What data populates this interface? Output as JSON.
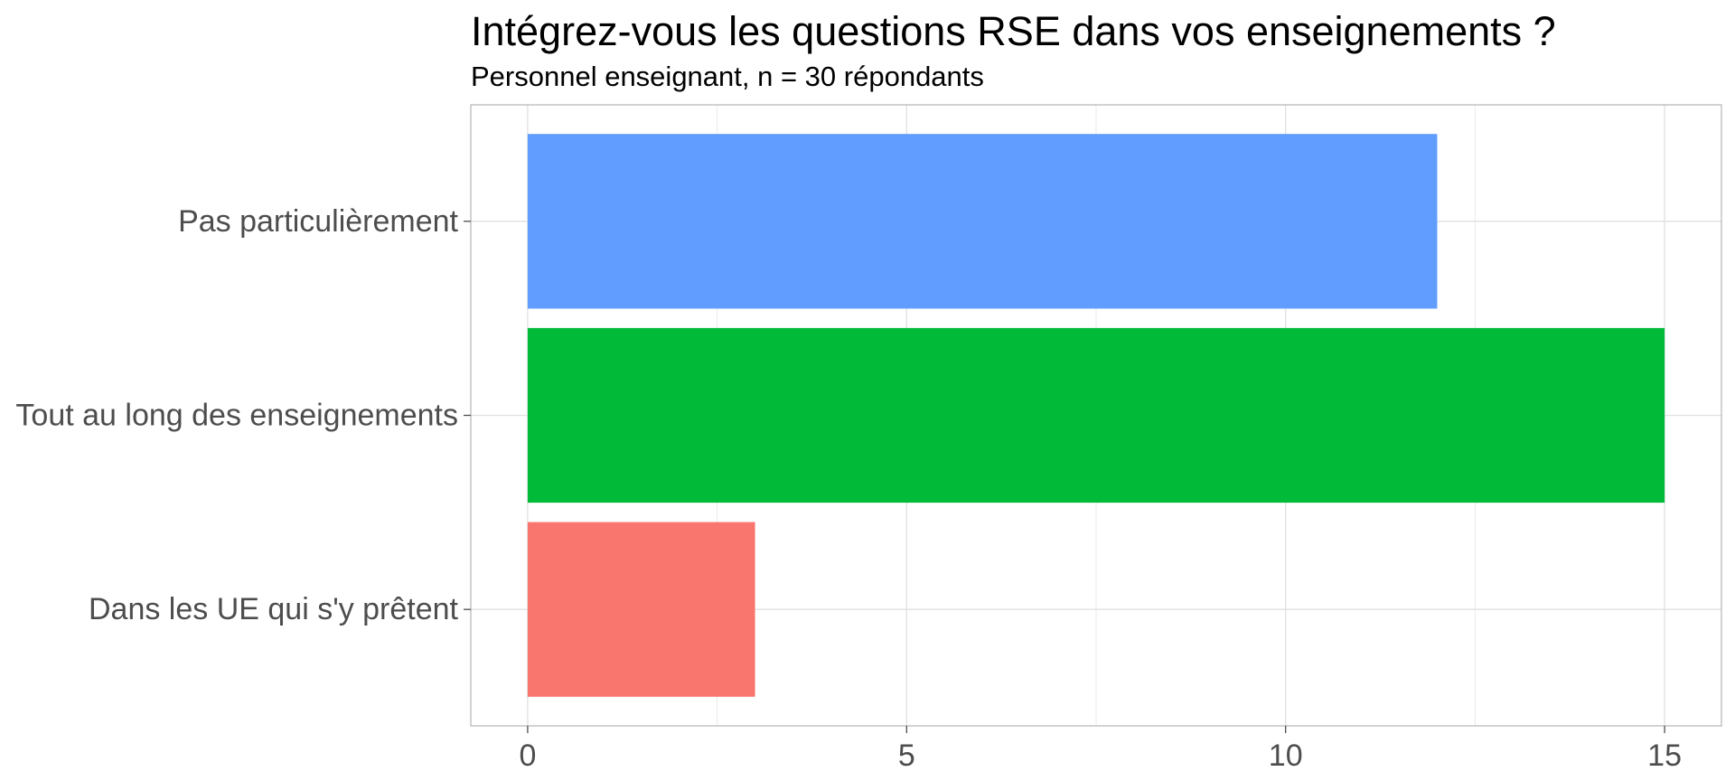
{
  "chart_data": {
    "type": "bar",
    "orientation": "horizontal",
    "title": "Intégrez-vous les questions RSE dans vos enseignements ?",
    "subtitle": "Personnel enseignant, n = 30 répondants",
    "xlabel": "",
    "ylabel": "",
    "categories": [
      "Pas particulièrement",
      "Tout au long des enseignements",
      "Dans les UE qui s'y prêtent"
    ],
    "values": [
      12,
      15,
      3
    ],
    "colors": [
      "#619CFF",
      "#00BA38",
      "#F8766D"
    ],
    "xlim": [
      -0.75,
      15.75
    ],
    "x_ticks": [
      0,
      5,
      10,
      15
    ],
    "grid": true,
    "legend": "none"
  }
}
